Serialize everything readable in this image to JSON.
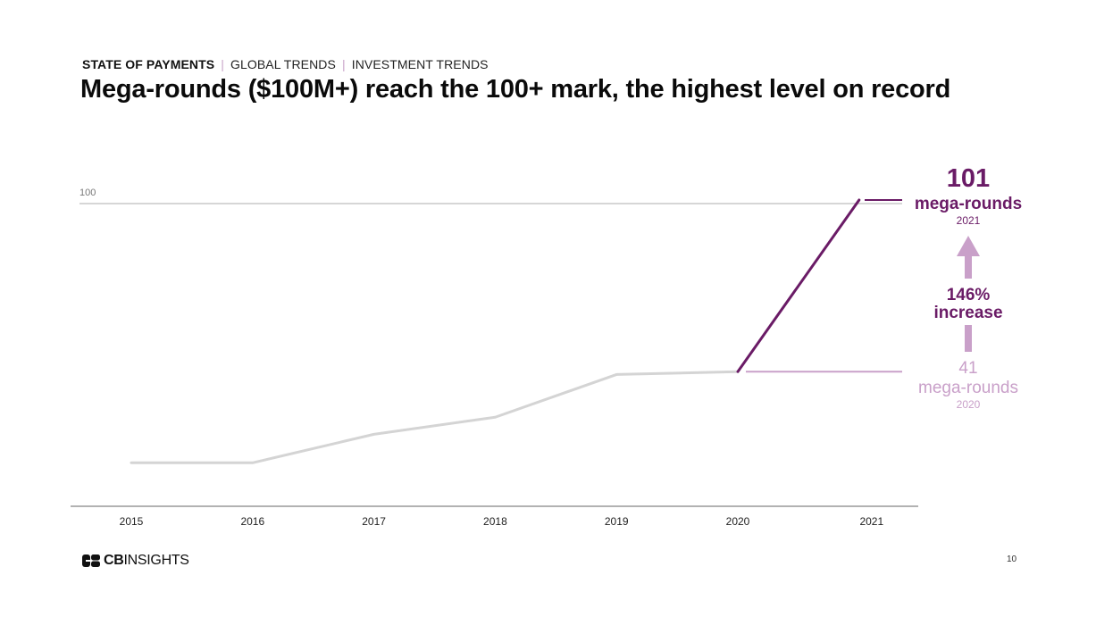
{
  "breadcrumb": {
    "section": "STATE OF PAYMENTS",
    "sub1": "GLOBAL TRENDS",
    "sub2": "INVESTMENT TRENDS",
    "separator": "|"
  },
  "title": "Mega-rounds ($100M+) reach the 100+ mark, the highest level on record",
  "chart_data": {
    "type": "line",
    "title": "Mega-rounds ($100M+) reach the 100+ mark, the highest level on record",
    "xlabel": "",
    "ylabel": "",
    "categories": [
      "2015",
      "2016",
      "2017",
      "2018",
      "2019",
      "2020",
      "2021"
    ],
    "series": [
      {
        "values": [
          9,
          9,
          19,
          25,
          40,
          41,
          101
        ]
      }
    ],
    "ylim": [
      0,
      100
    ],
    "reference_line": {
      "value": 100,
      "label": "100"
    },
    "highlight_segment": [
      "2020",
      "2021"
    ],
    "colors": {
      "base_line": "#d4d4d4",
      "highlight_line": "#6a1b66",
      "reference_line": "#c8c8c8",
      "axis": "#666666",
      "accent_light": "#c9a0c9"
    },
    "annotations": {
      "top": {
        "value": "101",
        "label": "mega-rounds",
        "year": "2021"
      },
      "change": {
        "line1": "146%",
        "line2": "increase"
      },
      "bottom": {
        "value": "41",
        "label": "mega-rounds",
        "year": "2020"
      }
    }
  },
  "footer": {
    "logo_icon": "cb-logo-icon",
    "logo_bold": "CB",
    "logo_rest": "INSIGHTS",
    "page_number": "10"
  }
}
